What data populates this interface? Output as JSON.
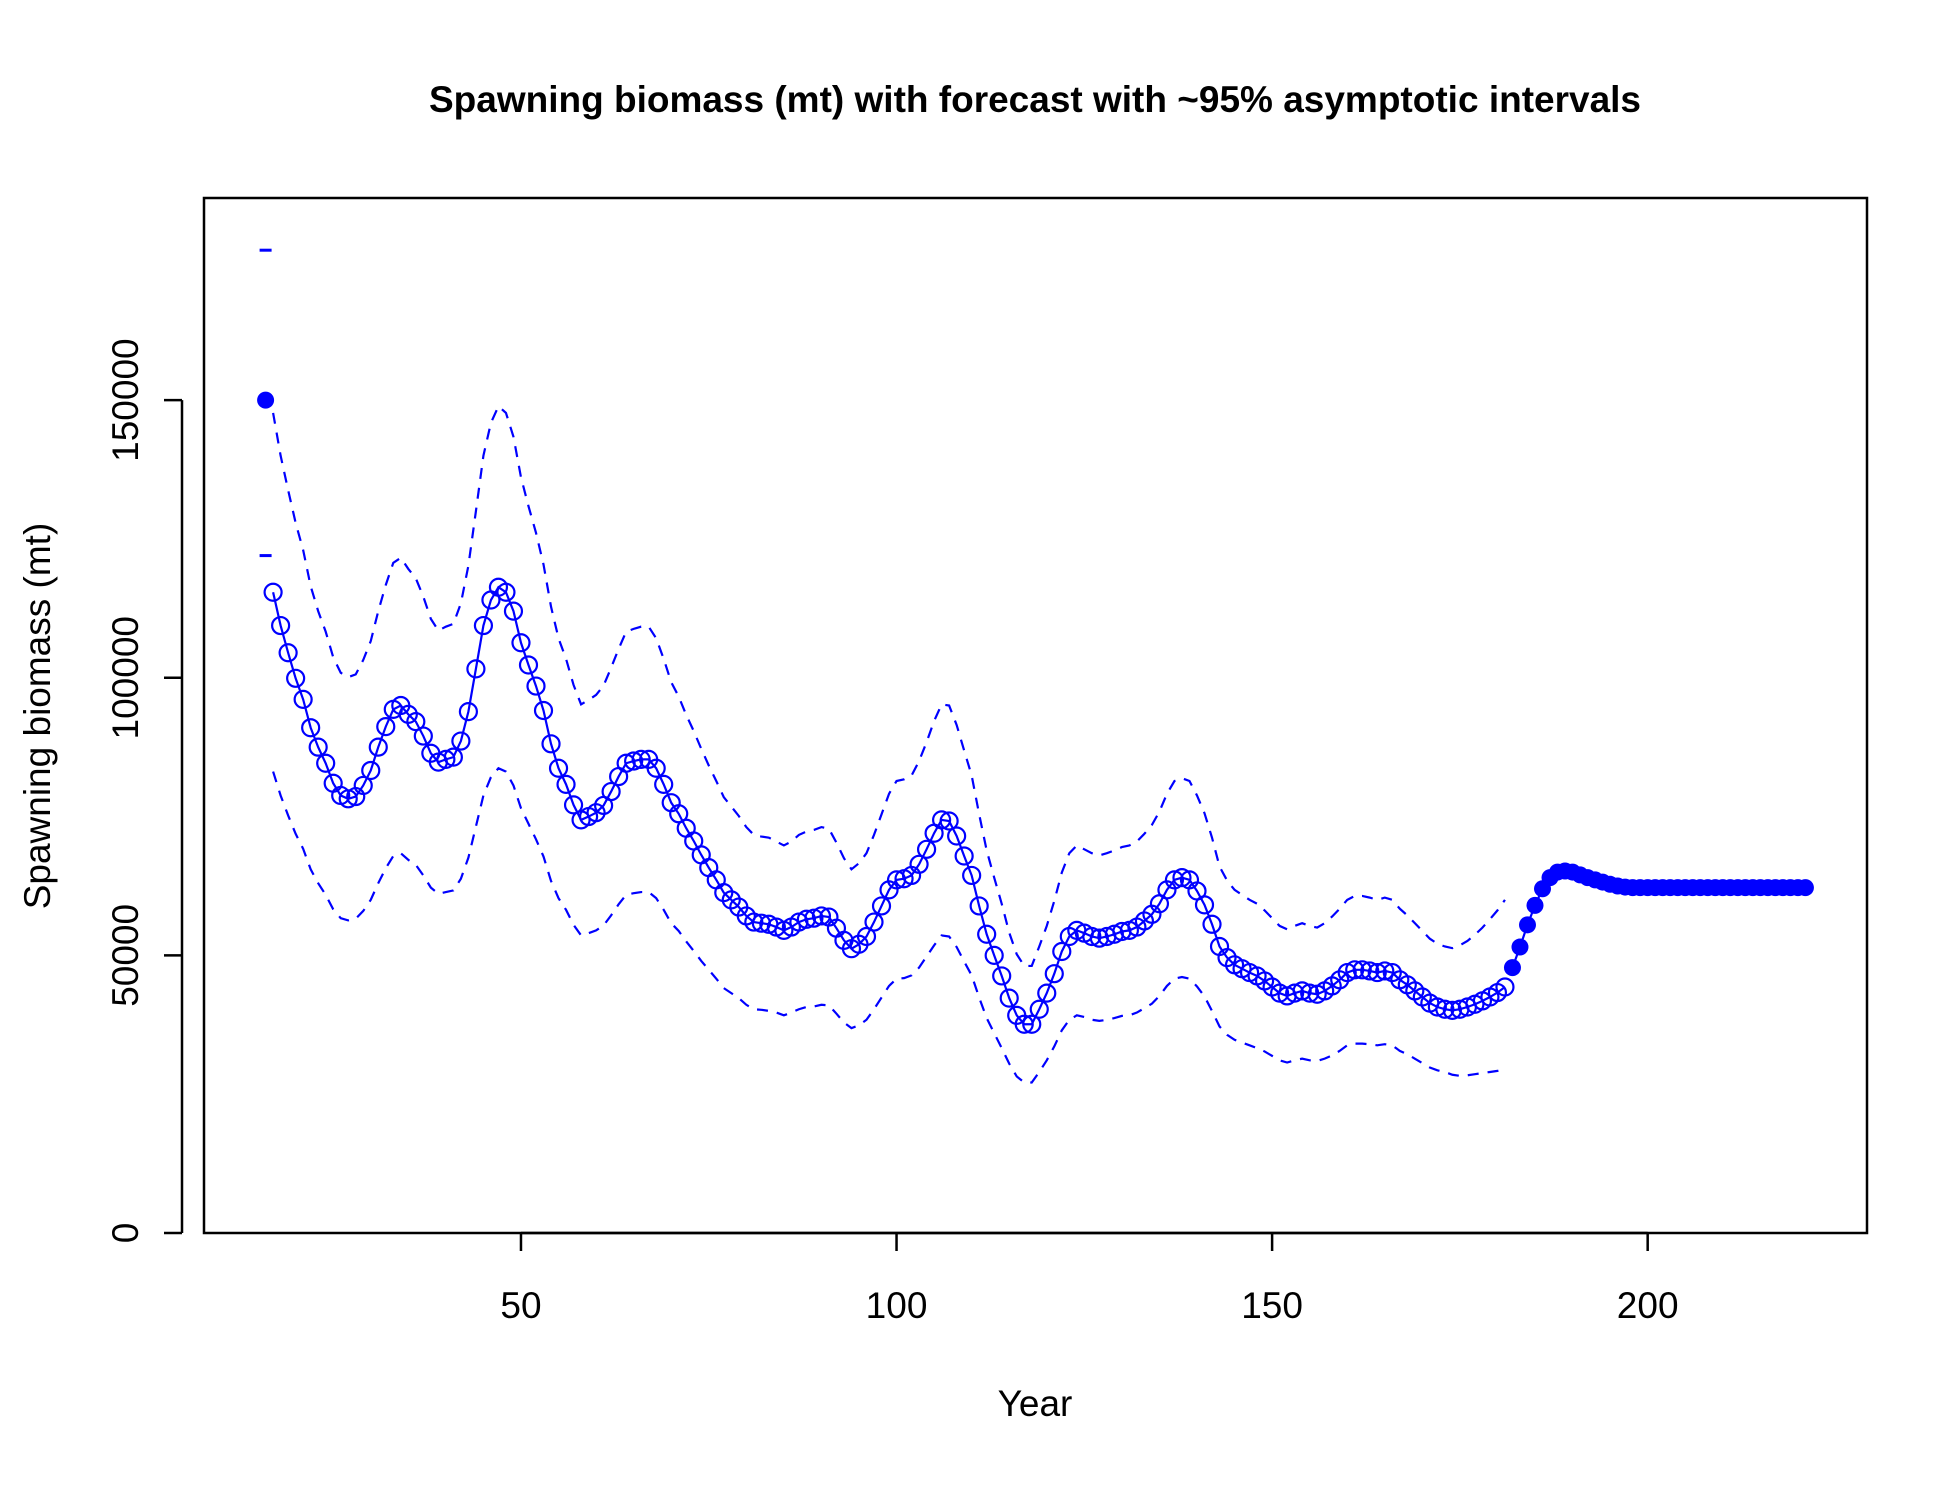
{
  "chart_data": {
    "type": "line",
    "title": "Spawning biomass (mt) with forecast with ~95% asymptotic intervals",
    "xlabel": "Year",
    "ylabel": "Spawning biomass (mt)",
    "xlim": [
      7.8,
      229.2
    ],
    "ylim": [
      0,
      186400
    ],
    "xticks": [
      50,
      100,
      150,
      200
    ],
    "yticks": [
      0,
      50000,
      100000,
      150000
    ],
    "color": "#0000ff",
    "virgin": {
      "x": 16,
      "value": 150000,
      "upper": 177000,
      "lower": 122000
    },
    "estimates": {
      "x": [
        17,
        18,
        19,
        20,
        21,
        22,
        23,
        24,
        25,
        26,
        27,
        28,
        29,
        30,
        31,
        32,
        33,
        34,
        35,
        36,
        37,
        38,
        39,
        40,
        41,
        42,
        43,
        44,
        45,
        46,
        47,
        48,
        49,
        50,
        51,
        52,
        53,
        54,
        55,
        56,
        57,
        58,
        59,
        60,
        61,
        62,
        63,
        64,
        65,
        66,
        67,
        68,
        69,
        70,
        71,
        72,
        73,
        74,
        75,
        76,
        77,
        78,
        79,
        80,
        81,
        82,
        83,
        84,
        85,
        86,
        87,
        88,
        89,
        90,
        91,
        92,
        93,
        94,
        95,
        96,
        97,
        98,
        99,
        100,
        101,
        102,
        103,
        104,
        105,
        106,
        107,
        108,
        109,
        110,
        111,
        112,
        113,
        114,
        115,
        116,
        117,
        118,
        119,
        120,
        121,
        122,
        123,
        124,
        125,
        126,
        127,
        128,
        129,
        130,
        131,
        132,
        133,
        134,
        135,
        136,
        137,
        138,
        139,
        140,
        141,
        142,
        143,
        144,
        145,
        146,
        147,
        148,
        149,
        150,
        151,
        152,
        153,
        154,
        155,
        156,
        157,
        158,
        159,
        160,
        161,
        162,
        163,
        164,
        165,
        166,
        167,
        168,
        169,
        170,
        171,
        172,
        173,
        174,
        175,
        176,
        177,
        178,
        179,
        180,
        181
      ],
      "values": [
        115400,
        109400,
        104500,
        99900,
        96100,
        91000,
        87500,
        84600,
        81000,
        78800,
        78200,
        78600,
        80600,
        83300,
        87500,
        91200,
        94300,
        95000,
        93400,
        92100,
        89500,
        86400,
        84800,
        85300,
        85700,
        88600,
        93900,
        101600,
        109400,
        114000,
        116300,
        115400,
        112000,
        106300,
        102300,
        98500,
        94100,
        88100,
        83700,
        80800,
        77100,
        74400,
        75000,
        75700,
        77000,
        79500,
        82200,
        84600,
        85000,
        85300,
        85300,
        83700,
        80800,
        77500,
        75500,
        72900,
        70600,
        68100,
        65800,
        63600,
        61300,
        60000,
        58700,
        57100,
        56000,
        55800,
        55600,
        55100,
        54500,
        55100,
        56000,
        56500,
        56700,
        57100,
        56900,
        54900,
        52700,
        51200,
        52000,
        53400,
        56000,
        58900,
        61800,
        63600,
        63800,
        64400,
        66400,
        69100,
        72000,
        74400,
        74200,
        71500,
        67900,
        64400,
        58900,
        53800,
        50000,
        46300,
        42300,
        39200,
        37600,
        37600,
        40300,
        43200,
        46700,
        50700,
        53400,
        54500,
        54000,
        53400,
        53100,
        53400,
        53800,
        54300,
        54500,
        55100,
        56200,
        57400,
        59300,
        61800,
        63600,
        64000,
        63600,
        61600,
        59100,
        55600,
        51600,
        49600,
        48300,
        47600,
        46900,
        46300,
        45400,
        44300,
        43200,
        42700,
        43200,
        43600,
        43200,
        43000,
        43600,
        44500,
        45600,
        46900,
        47400,
        47400,
        47200,
        46900,
        47200,
        46900,
        45600,
        44700,
        43600,
        42500,
        41400,
        40700,
        40300,
        40100,
        40300,
        40700,
        41200,
        41800,
        42500,
        43300,
        44300
      ],
      "upper": [
        147700,
        140000,
        133800,
        127900,
        123000,
        116500,
        112000,
        108300,
        103700,
        100900,
        100100,
        100600,
        103200,
        106600,
        112000,
        116700,
        120700,
        121600,
        119600,
        117900,
        114600,
        110600,
        108500,
        109200,
        109700,
        113400,
        120200,
        130000,
        140000,
        145900,
        148900,
        147700,
        143400,
        136100,
        130900,
        126100,
        120400,
        112800,
        107100,
        103400,
        98700,
        95200,
        96000,
        96900,
        98600,
        101800,
        105200,
        108300,
        108800,
        109200,
        109200,
        107100,
        103400,
        99200,
        96600,
        93300,
        90400,
        87200,
        84200,
        81400,
        78500,
        76800,
        75100,
        73100,
        71700,
        71400,
        71200,
        70500,
        69800,
        70500,
        71700,
        72300,
        72600,
        73100,
        72800,
        70300,
        67500,
        65500,
        66600,
        68400,
        71700,
        75400,
        79100,
        81400,
        81700,
        82400,
        85000,
        88400,
        92200,
        95200,
        95000,
        91500,
        86900,
        82400,
        75400,
        68900,
        64000,
        59300,
        54100,
        50200,
        48100,
        48100,
        51600,
        55300,
        59800,
        64900,
        68400,
        69800,
        69100,
        68400,
        68000,
        68400,
        68900,
        69500,
        69800,
        70500,
        71900,
        73500,
        75900,
        79100,
        81400,
        81900,
        81400,
        78800,
        75600,
        71200,
        66000,
        63500,
        61800,
        60900,
        60000,
        59300,
        58100,
        56700,
        55300,
        54700,
        55300,
        55800,
        55300,
        55000,
        55800,
        57000,
        58400,
        60000,
        60700,
        60700,
        60400,
        60000,
        60400,
        60000,
        58400,
        57200,
        55800,
        54400,
        53000,
        52100,
        51600,
        51300,
        51800,
        52600,
        53700,
        55000,
        56500,
        58100,
        60000
      ],
      "lower": [
        83100,
        78800,
        75200,
        71900,
        69200,
        65500,
        63000,
        60900,
        58300,
        56700,
        56300,
        56600,
        58000,
        60000,
        63000,
        65700,
        67900,
        68400,
        67200,
        66300,
        64400,
        62200,
        61100,
        61400,
        61700,
        63800,
        67600,
        73200,
        78800,
        82100,
        83700,
        83100,
        80600,
        76500,
        73700,
        70900,
        67800,
        63400,
        60300,
        58200,
        55500,
        53600,
        54000,
        54500,
        55400,
        57200,
        59200,
        60900,
        61200,
        61400,
        61400,
        60300,
        58200,
        55800,
        54400,
        52500,
        50800,
        49000,
        47400,
        45800,
        44100,
        43200,
        42300,
        41100,
        40300,
        40200,
        40000,
        39700,
        39200,
        39700,
        40300,
        40700,
        40800,
        41100,
        41000,
        39500,
        37900,
        36900,
        37400,
        38400,
        40300,
        42400,
        44500,
        45800,
        45900,
        46400,
        47800,
        49800,
        51800,
        53600,
        53400,
        51500,
        48900,
        46400,
        42400,
        38700,
        36000,
        33300,
        30500,
        28200,
        27100,
        27100,
        29000,
        31100,
        33600,
        36500,
        38400,
        39200,
        38900,
        38400,
        38200,
        38400,
        38700,
        39100,
        39200,
        39700,
        40500,
        41300,
        42700,
        44500,
        45800,
        46100,
        45800,
        44400,
        42600,
        40000,
        37200,
        35700,
        34800,
        34300,
        33800,
        33300,
        32700,
        31900,
        31100,
        30700,
        31100,
        31400,
        31100,
        31000,
        31400,
        32000,
        32800,
        33800,
        34100,
        34100,
        34000,
        33800,
        34000,
        33800,
        32800,
        32200,
        31400,
        30600,
        29800,
        29300,
        29000,
        28500,
        28300,
        28400,
        28600,
        28800,
        29000,
        29200,
        29500
      ]
    },
    "forecast": {
      "x": [
        182,
        183,
        184,
        185,
        186,
        187,
        188,
        189,
        190,
        191,
        192,
        193,
        194,
        195,
        196,
        197,
        198,
        199,
        200,
        201,
        202,
        203,
        204,
        205,
        206,
        207,
        208,
        209,
        210,
        211,
        212,
        213,
        214,
        215,
        216,
        217,
        218,
        219,
        220,
        221
      ],
      "values": [
        47800,
        51500,
        55500,
        59000,
        62000,
        64000,
        65000,
        65200,
        65000,
        64500,
        64000,
        63600,
        63200,
        62800,
        62500,
        62300,
        62200,
        62200,
        62200,
        62200,
        62200,
        62200,
        62200,
        62200,
        62200,
        62200,
        62200,
        62200,
        62200,
        62200,
        62200,
        62200,
        62200,
        62200,
        62200,
        62200,
        62200,
        62200,
        62200,
        62200
      ]
    }
  }
}
